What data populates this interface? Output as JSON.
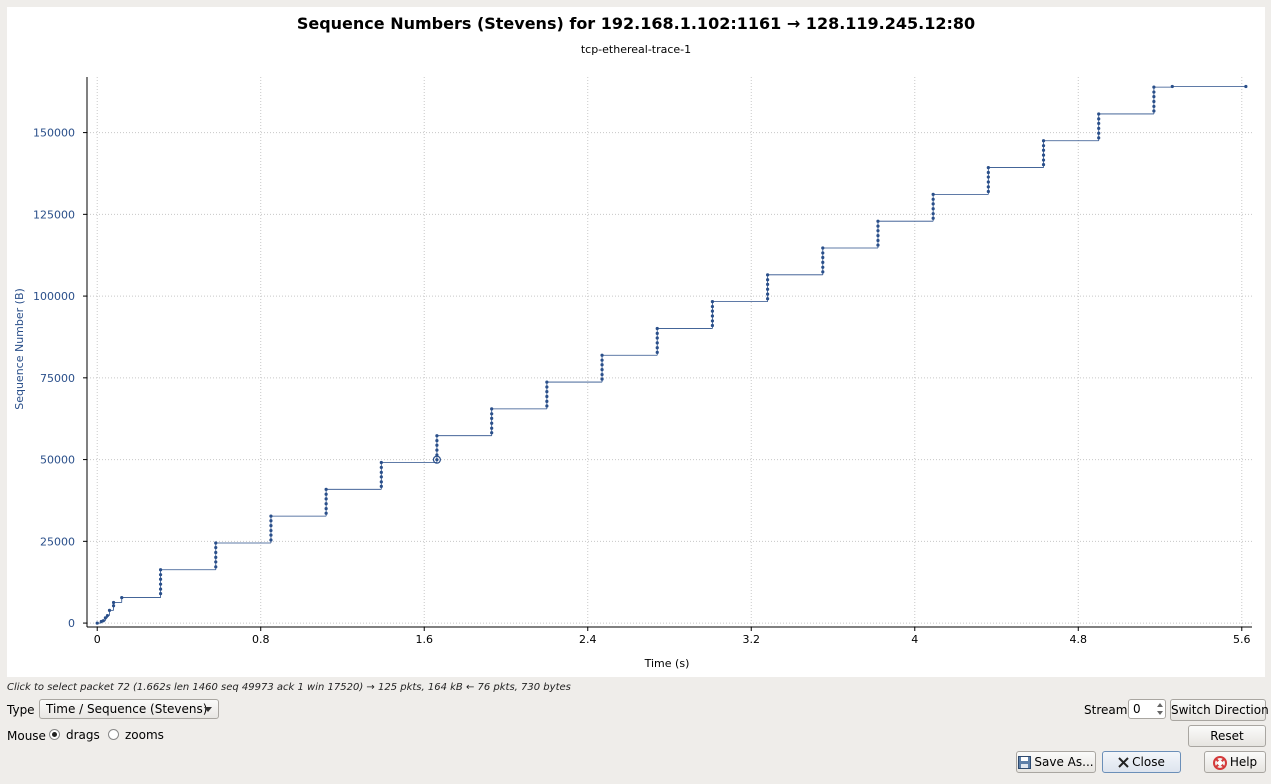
{
  "graph": {
    "title": "Sequence Numbers (Stevens) for 192.168.1.102:1161 → 128.119.245.12:80",
    "subtitle": "tcp-ethereal-trace-1",
    "xlabel": "Time (s)",
    "ylabel": "Sequence Number (B)"
  },
  "chart_data": {
    "type": "scatter",
    "title": "Sequence Numbers (Stevens) for 192.168.1.102:1161 → 128.119.245.12:80",
    "subtitle": "tcp-ethereal-trace-1",
    "xlabel": "Time (s)",
    "ylabel": "Sequence Number (B)",
    "xlim": [
      -0.05,
      5.65
    ],
    "ylim": [
      -1200,
      167000
    ],
    "xticks": [
      0,
      0.8,
      1.6,
      2.4,
      3.2,
      4,
      4.8,
      5.6
    ],
    "xtick_labels": [
      "0",
      "0.8",
      "1.6",
      "2.4",
      "3.2",
      "4",
      "4.8",
      "5.6"
    ],
    "yticks": [
      0,
      25000,
      50000,
      75000,
      100000,
      125000,
      150000
    ],
    "ytick_labels": [
      "0",
      "25000",
      "50000",
      "75000",
      "100000",
      "125000",
      "150000"
    ],
    "grid": true,
    "series_color": "#2a4f8a",
    "selected_color": "#2a4f8a",
    "selected_point": [
      1.662,
      49973
    ],
    "bursts": [
      {
        "t": 0.0,
        "seq": [
          0
        ]
      },
      {
        "t": 0.02,
        "seq": [
          500
        ]
      },
      {
        "t": 0.03,
        "seq": [
          700
        ]
      },
      {
        "t": 0.04,
        "seq": [
          1600
        ]
      },
      {
        "t": 0.05,
        "seq": [
          2300
        ]
      },
      {
        "t": 0.06,
        "seq": [
          3900
        ]
      },
      {
        "t": 0.08,
        "seq": [
          5300,
          6300
        ]
      },
      {
        "t": 0.12,
        "seq": [
          7800
        ]
      },
      {
        "t": 0.31,
        "seq": [
          9000,
          10400,
          11900,
          13400,
          14800,
          16300
        ]
      },
      {
        "t": 0.58,
        "seq": [
          17200,
          18700,
          20100,
          21600,
          23100,
          24500
        ]
      },
      {
        "t": 0.85,
        "seq": [
          25400,
          26900,
          28300,
          29800,
          31300,
          32700
        ]
      },
      {
        "t": 1.12,
        "seq": [
          33600,
          35000,
          36500,
          38000,
          39400,
          40900
        ]
      },
      {
        "t": 1.39,
        "seq": [
          41800,
          43200,
          44700,
          46100,
          47600,
          49100
        ]
      },
      {
        "t": 1.662,
        "seq": [
          49973,
          51400,
          52900,
          54400,
          55800,
          57300
        ]
      },
      {
        "t": 1.93,
        "seq": [
          58200,
          59600,
          61100,
          62600,
          64000,
          65500
        ]
      },
      {
        "t": 2.2,
        "seq": [
          66400,
          67800,
          69300,
          70800,
          72200,
          73700
        ]
      },
      {
        "t": 2.47,
        "seq": [
          74600,
          76000,
          77500,
          79000,
          80400,
          81900
        ]
      },
      {
        "t": 2.74,
        "seq": [
          82800,
          84200,
          85700,
          87200,
          88600,
          90100
        ]
      },
      {
        "t": 3.01,
        "seq": [
          91000,
          92400,
          93900,
          95400,
          96800,
          98300
        ]
      },
      {
        "t": 3.28,
        "seq": [
          99200,
          100600,
          102100,
          103600,
          105000,
          106500
        ]
      },
      {
        "t": 3.55,
        "seq": [
          107400,
          108800,
          110300,
          111800,
          113200,
          114700
        ]
      },
      {
        "t": 3.82,
        "seq": [
          115600,
          117000,
          118500,
          120000,
          121400,
          122900
        ]
      },
      {
        "t": 4.09,
        "seq": [
          123800,
          125200,
          126700,
          128200,
          129600,
          131100
        ]
      },
      {
        "t": 4.36,
        "seq": [
          132000,
          133400,
          134900,
          136400,
          137800,
          139300
        ]
      },
      {
        "t": 4.63,
        "seq": [
          140200,
          141600,
          143100,
          144600,
          146000,
          147500
        ]
      },
      {
        "t": 4.9,
        "seq": [
          148400,
          149800,
          151300,
          152800,
          154200,
          155700
        ]
      },
      {
        "t": 5.17,
        "seq": [
          156600,
          158000,
          159500,
          161000,
          162400,
          163900
        ]
      },
      {
        "t": 5.26,
        "seq": [
          164100
        ]
      },
      {
        "t": 5.62,
        "seq": [
          164100
        ]
      }
    ]
  },
  "status": {
    "hint": "Click to select packet 72 (1.662s len 1460 seq 49973 ack 1 win 17520) → 125 pkts, 164 kB ← 76 pkts, 730 bytes"
  },
  "controls": {
    "type_label": "Type",
    "type_value": "Time / Sequence (Stevens)",
    "mouse_label": "Mouse",
    "mouse_drags": "drags",
    "mouse_zooms": "zooms",
    "mouse_selected": "drags",
    "stream_label": "Stream",
    "stream_value": "0",
    "switch_direction": "Switch Direction",
    "reset": "Reset",
    "save_as": "Save As...",
    "close": "Close",
    "help": "Help"
  }
}
